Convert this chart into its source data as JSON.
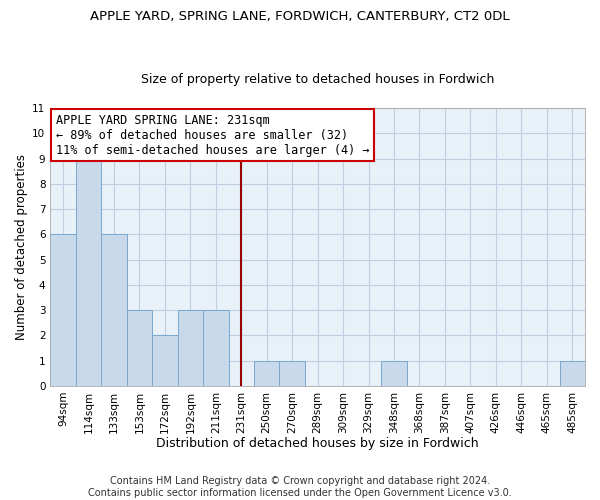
{
  "title": "APPLE YARD, SPRING LANE, FORDWICH, CANTERBURY, CT2 0DL",
  "subtitle": "Size of property relative to detached houses in Fordwich",
  "xlabel": "Distribution of detached houses by size in Fordwich",
  "ylabel": "Number of detached properties",
  "bar_labels": [
    "94sqm",
    "114sqm",
    "133sqm",
    "153sqm",
    "172sqm",
    "192sqm",
    "211sqm",
    "231sqm",
    "250sqm",
    "270sqm",
    "289sqm",
    "309sqm",
    "329sqm",
    "348sqm",
    "368sqm",
    "387sqm",
    "407sqm",
    "426sqm",
    "446sqm",
    "465sqm",
    "485sqm"
  ],
  "bar_values": [
    6,
    9,
    6,
    3,
    2,
    3,
    3,
    0,
    1,
    1,
    0,
    0,
    0,
    1,
    0,
    0,
    0,
    0,
    0,
    0,
    1
  ],
  "bar_color": "#c9d9ec",
  "bar_edge_color": "#7aa8cc",
  "reference_line_index": 7,
  "reference_line_color": "#990000",
  "annotation_line1": "APPLE YARD SPRING LANE: 231sqm",
  "annotation_line2": "← 89% of detached houses are smaller (32)",
  "annotation_line3": "11% of semi-detached houses are larger (4) →",
  "annotation_box_color": "#ffffff",
  "annotation_box_edge_color": "#cc0000",
  "ylim": [
    0,
    11
  ],
  "yticks": [
    0,
    1,
    2,
    3,
    4,
    5,
    6,
    7,
    8,
    9,
    10,
    11
  ],
  "grid_color": "#c0cfe0",
  "background_color": "#e8f0f8",
  "footer_line1": "Contains HM Land Registry data © Crown copyright and database right 2024.",
  "footer_line2": "Contains public sector information licensed under the Open Government Licence v3.0.",
  "title_fontsize": 9.5,
  "subtitle_fontsize": 9,
  "xlabel_fontsize": 9,
  "ylabel_fontsize": 8.5,
  "tick_fontsize": 7.5,
  "annotation_fontsize": 8.5,
  "footer_fontsize": 7
}
